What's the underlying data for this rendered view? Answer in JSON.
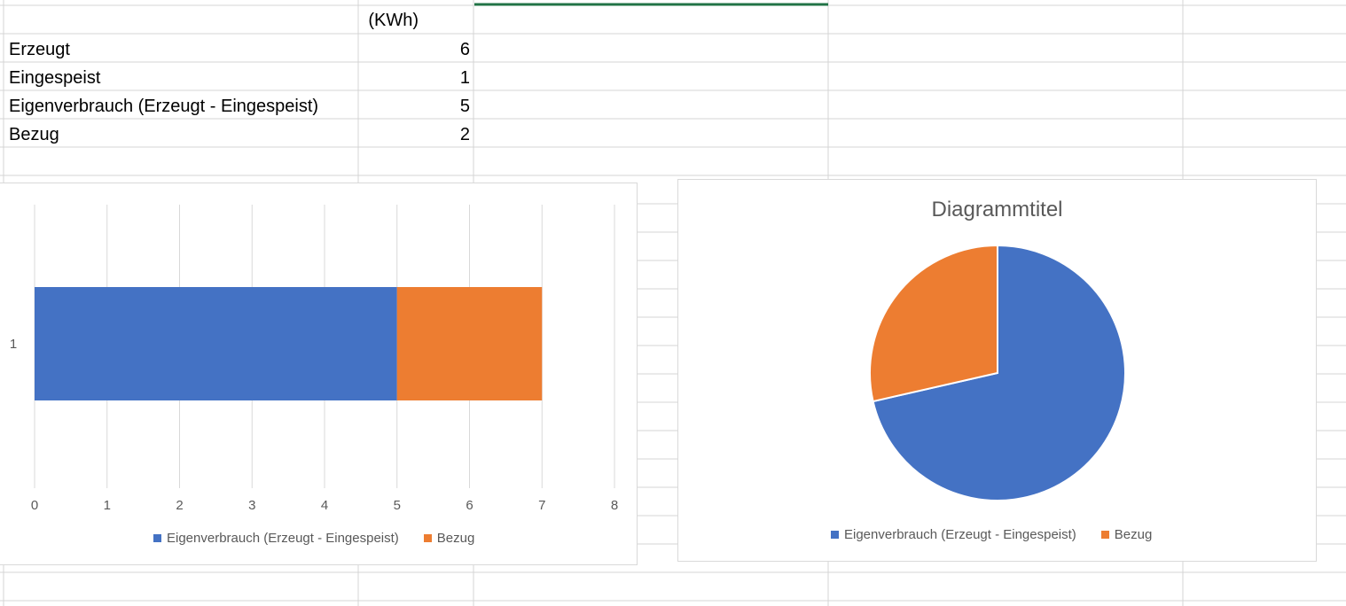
{
  "sheet": {
    "header_unit": "(KWh)",
    "rows": [
      {
        "label": "Erzeugt",
        "value": "6"
      },
      {
        "label": "Eingespeist",
        "value": "1"
      },
      {
        "label": "Eigenverbrauch (Erzeugt - Eingespeist)",
        "value": "5"
      },
      {
        "label": "Bezug",
        "value": "2"
      }
    ],
    "selected_cell_color": "#217346",
    "gridline_color": "#d4d4d4"
  },
  "colors": {
    "blue": "#4472C4",
    "orange": "#ED7D31",
    "axis_text": "#595959",
    "chart_gridline": "#d9d9d9"
  },
  "chart_data": [
    {
      "type": "bar",
      "orientation": "horizontal",
      "stacked": true,
      "title": "",
      "categories": [
        "1"
      ],
      "series": [
        {
          "name": "Eigenverbrauch (Erzeugt - Eingespeist)",
          "values": [
            5
          ],
          "color": "#4472C4"
        },
        {
          "name": "Bezug",
          "values": [
            2
          ],
          "color": "#ED7D31"
        }
      ],
      "xlim": [
        0,
        8
      ],
      "xticks": [
        "0",
        "1",
        "2",
        "3",
        "4",
        "5",
        "6",
        "7",
        "8"
      ],
      "grid": true,
      "legend": "bottom"
    },
    {
      "type": "pie",
      "title": "Diagrammtitel",
      "categories": [
        "Eigenverbrauch (Erzeugt - Eingespeist)",
        "Bezug"
      ],
      "values": [
        5,
        2
      ],
      "colors": [
        "#4472C4",
        "#ED7D31"
      ],
      "legend": "bottom"
    }
  ]
}
